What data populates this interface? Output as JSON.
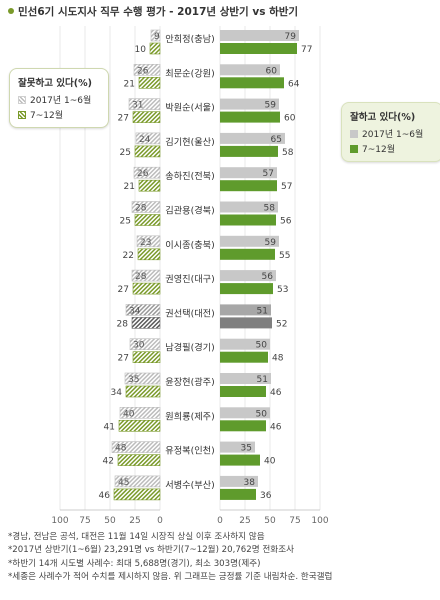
{
  "title": "민선6기 시도지사 직무 수행 평가 - 2017년 상반기 vs 하반기",
  "legend_left": {
    "title": "잘못하고 있다(%)",
    "items": [
      "2017년 1~6월",
      "7~12월"
    ]
  },
  "legend_right": {
    "title": "잘하고 있다(%)",
    "items": [
      "2017년 1~6월",
      "7~12월"
    ]
  },
  "colors": {
    "good_h1": "#c8c8c8",
    "good_h2": "#5f9b2c",
    "bad_hatch": "#9ab85a",
    "highlight_h1": "#a7a7a7",
    "highlight_h2": "#7f7f7f"
  },
  "chart_data": {
    "type": "bar",
    "categories": [
      "안희정(충남)",
      "최문순(강원)",
      "박원순(서울)",
      "김기현(울산)",
      "송하진(전북)",
      "김관용(경북)",
      "이시종(충북)",
      "권영진(대구)",
      "권선택(대전)",
      "남경필(경기)",
      "윤장현(광주)",
      "원희룡(제주)",
      "유정복(인천)",
      "서병수(부산)"
    ],
    "highlighted_category": "권선택(대전)",
    "left_series": [
      {
        "name": "잘못하고 있다 2017년 1~6월",
        "values": [
          9,
          26,
          31,
          24,
          26,
          28,
          23,
          28,
          34,
          30,
          35,
          40,
          48,
          45
        ]
      },
      {
        "name": "잘못하고 있다 7~12월",
        "values": [
          10,
          21,
          27,
          25,
          21,
          25,
          22,
          27,
          28,
          27,
          34,
          41,
          42,
          46
        ]
      }
    ],
    "right_series": [
      {
        "name": "잘하고 있다 2017년 1~6월",
        "values": [
          79,
          60,
          59,
          65,
          57,
          58,
          59,
          56,
          51,
          50,
          51,
          50,
          35,
          38
        ]
      },
      {
        "name": "잘하고 있다 7~12월",
        "values": [
          77,
          64,
          60,
          58,
          57,
          56,
          55,
          53,
          52,
          48,
          46,
          46,
          40,
          36
        ]
      }
    ],
    "left_axis_ticks": [
      "100",
      "75",
      "50",
      "25",
      "0"
    ],
    "right_axis_ticks": [
      "0",
      "25",
      "50",
      "75",
      "100"
    ],
    "xlim": [
      0,
      100
    ]
  },
  "notes": [
    "*경남, 전남은 공석, 대전은 11월 14일 시장직 상실 이후 조사하지 않음",
    "*2017년 상반기(1~6월) 23,291명 vs 하반기(7~12월) 20,762명 전화조사",
    "*하반기 14개 시도별 사례수: 최대 5,688명(경기), 최소 303명(제주)",
    "*세종은 사례수가 적어 수치를 제시하지 않음. 위 그래프는 긍정률 기준 내림차순. 한국갤럽"
  ]
}
